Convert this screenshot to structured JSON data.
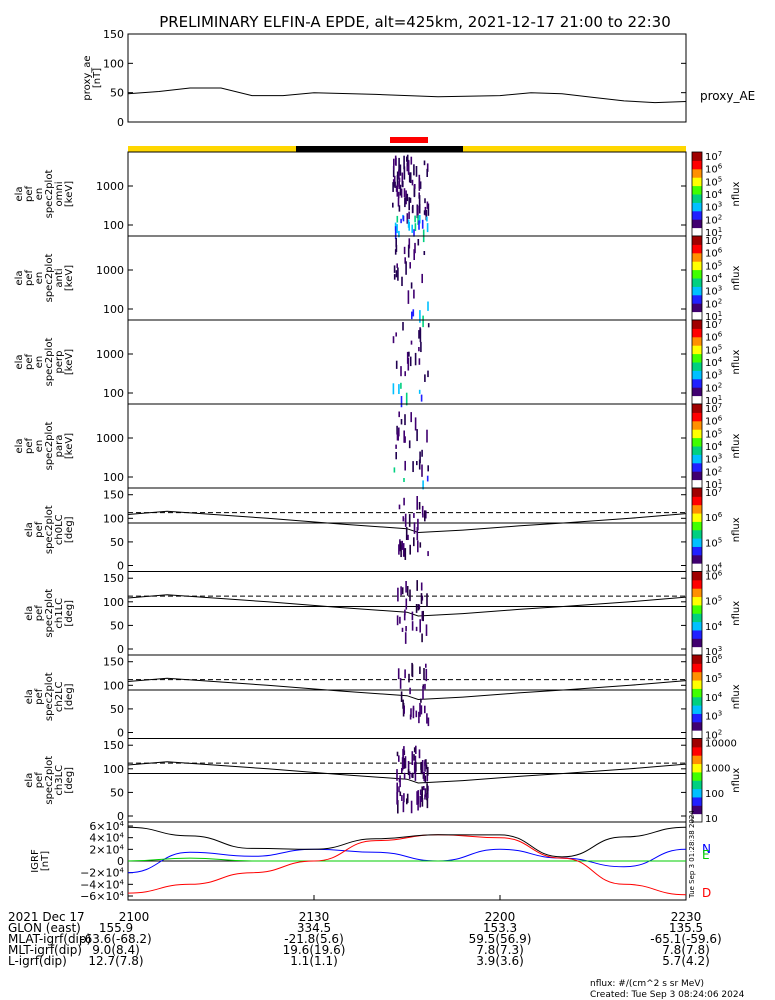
{
  "title": "PRELIMINARY ELFIN-A EPDE, alt=425km, 2021-12-17 21:00 to 22:30",
  "proxy_panel": {
    "ylabel_lines": [
      "proxy_ae",
      "[nT]"
    ],
    "yticks": [
      "150",
      "100",
      "50",
      "0"
    ],
    "ylim": [
      0,
      150
    ],
    "legend": "proxy_AE"
  },
  "spec_panels": [
    {
      "ylabel_lines": [
        "ela",
        "pef",
        "en",
        "spec2plot",
        "omni",
        "[keV]"
      ],
      "yticks": [
        "1000",
        "100"
      ],
      "cb_ticks": [
        "10^7",
        "10^6",
        "10^5",
        "10^4",
        "10^3",
        "10^2",
        "10^1"
      ],
      "cb_label": "nflux"
    },
    {
      "ylabel_lines": [
        "ela",
        "pef",
        "en",
        "spec2plot",
        "anti",
        "[keV]"
      ],
      "yticks": [
        "1000",
        "100"
      ],
      "cb_ticks": [
        "10^7",
        "10^6",
        "10^5",
        "10^4",
        "10^3",
        "10^2",
        "10^1"
      ],
      "cb_label": "nflux"
    },
    {
      "ylabel_lines": [
        "ela",
        "pef",
        "en",
        "spec2plot",
        "perp",
        "[keV]"
      ],
      "yticks": [
        "1000",
        "100"
      ],
      "cb_ticks": [
        "10^7",
        "10^6",
        "10^5",
        "10^4",
        "10^3",
        "10^2",
        "10^1"
      ],
      "cb_label": "nflux"
    },
    {
      "ylabel_lines": [
        "ela",
        "pef",
        "en",
        "spec2plot",
        "para",
        "[keV]"
      ],
      "yticks": [
        "1000",
        "100"
      ],
      "cb_ticks": [
        "10^7",
        "10^6",
        "10^5",
        "10^4",
        "10^3",
        "10^2",
        "10^1"
      ],
      "cb_label": "nflux"
    }
  ],
  "pa_panels": [
    {
      "ylabel_lines": [
        "ela",
        "pef",
        "spec2plot",
        "ch0LC",
        "[deg]"
      ],
      "yticks": [
        "150",
        "100",
        "50",
        "0"
      ],
      "cb_ticks": [
        "10^7",
        "10^6",
        "10^5",
        "10^4"
      ],
      "cb_label": "nflux"
    },
    {
      "ylabel_lines": [
        "ela",
        "pef",
        "spec2plot",
        "ch1LC",
        "[deg]"
      ],
      "yticks": [
        "150",
        "100",
        "50",
        "0"
      ],
      "cb_ticks": [
        "10^6",
        "10^5",
        "10^4",
        "10^3"
      ],
      "cb_label": "nflux"
    },
    {
      "ylabel_lines": [
        "ela",
        "pef",
        "spec2plot",
        "ch2LC",
        "[deg]"
      ],
      "yticks": [
        "150",
        "100",
        "50",
        "0"
      ],
      "cb_ticks": [
        "10^6",
        "10^5",
        "10^4",
        "10^3",
        "10^2"
      ],
      "cb_label": "nflux"
    },
    {
      "ylabel_lines": [
        "ela",
        "pef",
        "spec2plot",
        "ch3LC",
        "[deg]"
      ],
      "yticks": [
        "150",
        "100",
        "50",
        "0"
      ],
      "cb_ticks": [
        "10000",
        "1000",
        "100",
        "10"
      ],
      "cb_label": "nflux"
    }
  ],
  "field_panel": {
    "ylabel_lines": [
      "IGRF",
      "[nT]"
    ],
    "yticks": [
      "6×10^4",
      "4×10^4",
      "2×10^4",
      "0",
      "−2×10^4",
      "−4×10^4",
      "−6×10^4"
    ],
    "legend": [
      {
        "name": "N",
        "color": "#0000ff"
      },
      {
        "name": "E",
        "color": "#00cc00"
      },
      {
        "name": "D",
        "color": "#ff0000"
      }
    ],
    "side_text": "Tue Sep  3 01:28:38 2024"
  },
  "xaxis": {
    "ticks": [
      "2100",
      "2130",
      "2200",
      "2230"
    ],
    "rows": [
      {
        "label": "2021 Dec 17",
        "values": [
          "",
          "",
          "",
          ""
        ]
      },
      {
        "label": "GLON (east)",
        "values": [
          "155.9",
          "334.5",
          "153.3",
          "135.5"
        ]
      },
      {
        "label": "MLAT-igrf(dip)",
        "values": [
          "-63.6(-68.2)",
          "-21.8(5.6)",
          "59.5(56.9)",
          "-65.1(-59.6)"
        ]
      },
      {
        "label": "MLT-igrf(dip)",
        "values": [
          "9.0(8.4)",
          "19.6(19.6)",
          "7.8(7.3)",
          "7.8(7.8)"
        ]
      },
      {
        "label": "L-igrf(dip)",
        "values": [
          "12.7(7.8)",
          "1.1(1.1)",
          "3.9(3.6)",
          "5.7(4.2)"
        ]
      }
    ]
  },
  "footer": {
    "units": "nflux: #/(cm^2 s sr MeV)",
    "created": "Created: Tue Sep  3 08:24:06 2024"
  },
  "colors": {
    "status_yellow": "#ffd700",
    "status_black": "#000000",
    "highlight_red": "#ff0000",
    "trace": "#000000"
  },
  "chart_data": {
    "type": "line",
    "x_unit": "UT hhmm",
    "xlim": [
      "2100",
      "2230"
    ],
    "proxy_ae": {
      "x": [
        "2100",
        "2105",
        "2110",
        "2115",
        "2120",
        "2125",
        "2130",
        "2140",
        "2150",
        "2200",
        "2205",
        "2210",
        "2215",
        "2220",
        "2225",
        "2230"
      ],
      "values": [
        48,
        52,
        58,
        58,
        45,
        45,
        50,
        47,
        43,
        45,
        50,
        48,
        42,
        36,
        33,
        35
      ]
    },
    "pa_lines": {
      "solid_deg": [
        108,
        115,
        100,
        88,
        78,
        70,
        75,
        84,
        90,
        100,
        110
      ],
      "dashed_deg": 112,
      "horizontal_deg": 90
    },
    "igrf": {
      "x": [
        "2100",
        "2110",
        "2120",
        "2130",
        "2140",
        "2150",
        "2200",
        "2210",
        "2220",
        "2230"
      ],
      "series": [
        {
          "name": "N",
          "values": [
            -20000,
            15000,
            8000,
            20000,
            15000,
            0,
            20000,
            5000,
            -10000,
            20000
          ]
        },
        {
          "name": "E",
          "values": [
            0,
            5000,
            0,
            0,
            0,
            0,
            0,
            0,
            0,
            0
          ]
        },
        {
          "name": "D",
          "values": [
            -55000,
            -40000,
            -20000,
            0,
            35000,
            45000,
            40000,
            5000,
            -40000,
            -58000
          ]
        }
      ]
    }
  }
}
